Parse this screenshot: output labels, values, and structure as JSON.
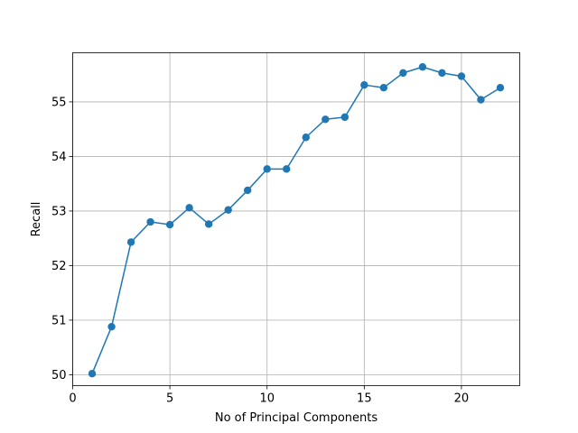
{
  "chart_data": {
    "type": "line",
    "title": "",
    "xlabel": "No of Principal Components",
    "ylabel": "Recall",
    "xlim": [
      0,
      23
    ],
    "ylim": [
      49.8,
      55.9
    ],
    "xticks": [
      0,
      5,
      10,
      15,
      20
    ],
    "yticks": [
      50,
      51,
      52,
      53,
      54,
      55
    ],
    "grid": true,
    "series": [
      {
        "color": "#1f77b4",
        "marker": "circle",
        "x": [
          1,
          2,
          3,
          4,
          5,
          6,
          7,
          8,
          9,
          10,
          11,
          12,
          13,
          14,
          15,
          16,
          17,
          18,
          19,
          20,
          21,
          22
        ],
        "y": [
          50.02,
          50.88,
          52.43,
          52.8,
          52.75,
          53.06,
          52.76,
          53.02,
          53.38,
          53.77,
          53.77,
          54.35,
          54.68,
          54.72,
          55.31,
          55.26,
          55.53,
          55.64,
          55.53,
          55.47,
          55.04,
          55.26
        ]
      }
    ]
  }
}
